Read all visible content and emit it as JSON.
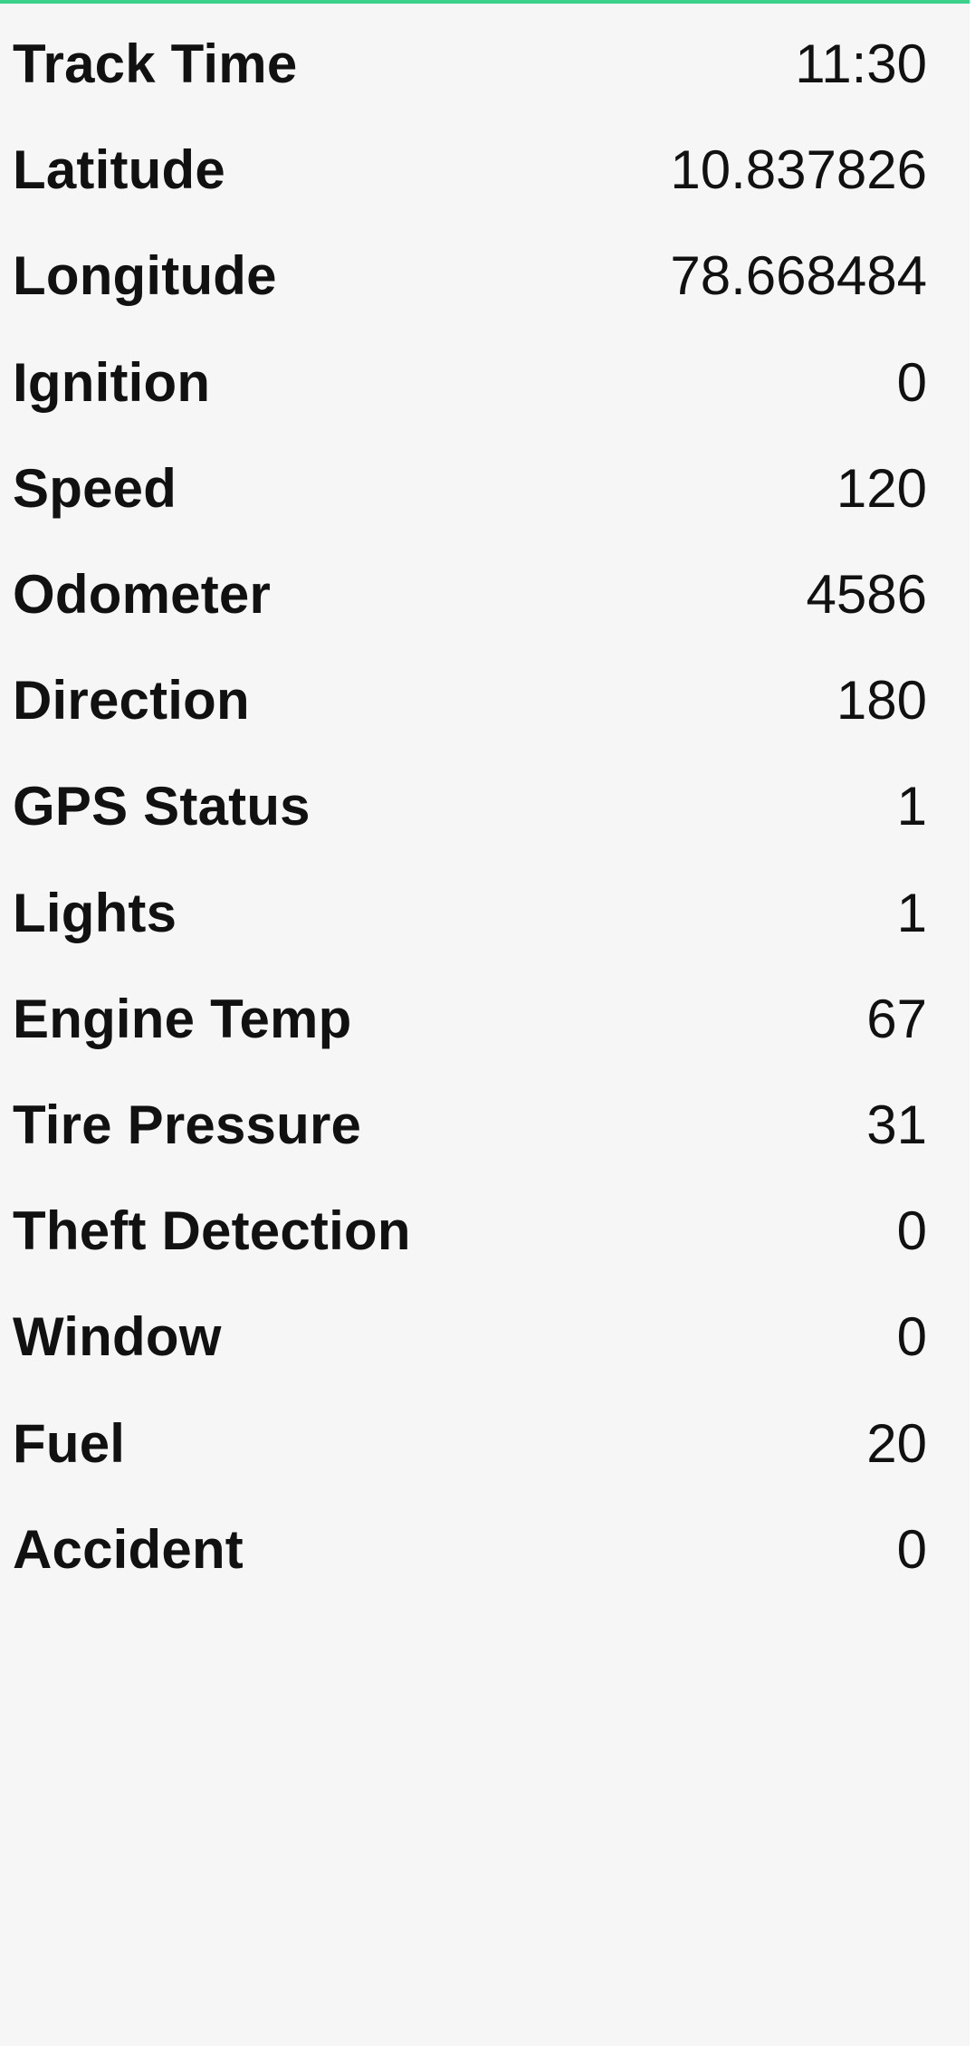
{
  "colors": {
    "accent": "#3dd08a",
    "background": "#f6f6f6",
    "text": "#111111"
  },
  "rows": [
    {
      "label": "Track Time",
      "value": "11:30"
    },
    {
      "label": "Latitude",
      "value": "10.837826"
    },
    {
      "label": "Longitude",
      "value": "78.668484"
    },
    {
      "label": "Ignition",
      "value": "0"
    },
    {
      "label": "Speed",
      "value": "120"
    },
    {
      "label": "Odometer",
      "value": "4586"
    },
    {
      "label": "Direction",
      "value": "180"
    },
    {
      "label": "GPS Status",
      "value": "1"
    },
    {
      "label": "Lights",
      "value": "1"
    },
    {
      "label": "Engine Temp",
      "value": "67"
    },
    {
      "label": "Tire Pressure",
      "value": "31"
    },
    {
      "label": "Theft Detection",
      "value": "0"
    },
    {
      "label": "Window",
      "value": "0"
    },
    {
      "label": "Fuel",
      "value": "20"
    },
    {
      "label": "Accident",
      "value": "0"
    }
  ]
}
